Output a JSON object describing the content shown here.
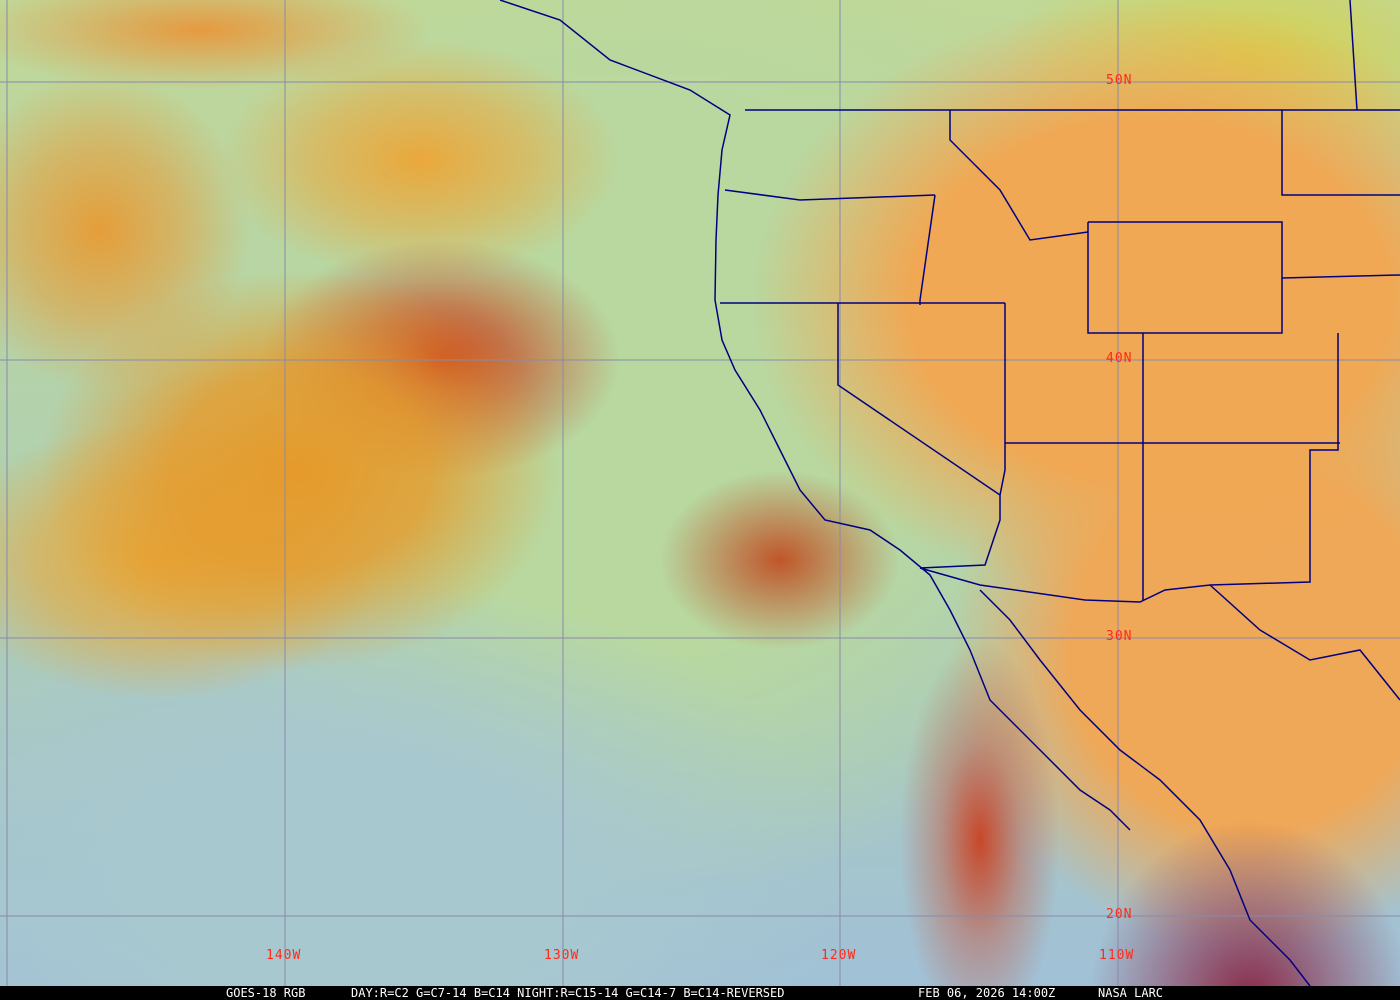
{
  "image": {
    "source_label": "GOES-18 RGB",
    "recipe": "DAY:R=C2 G=C7-14 B=C14 NIGHT:R=C15-14 G=C14-7 B=C14-REVERSED",
    "timestamp": "FEB 06, 2026 14:00Z",
    "credit": "NASA LARC"
  },
  "grid": {
    "latitude_labels": [
      "50N",
      "40N",
      "30N",
      "20N"
    ],
    "longitude_labels": [
      "140W",
      "130W",
      "120W",
      "110W"
    ],
    "grid_color": "#8a8aa8",
    "label_color": "#ff2a1a",
    "border_color": "#000080"
  }
}
